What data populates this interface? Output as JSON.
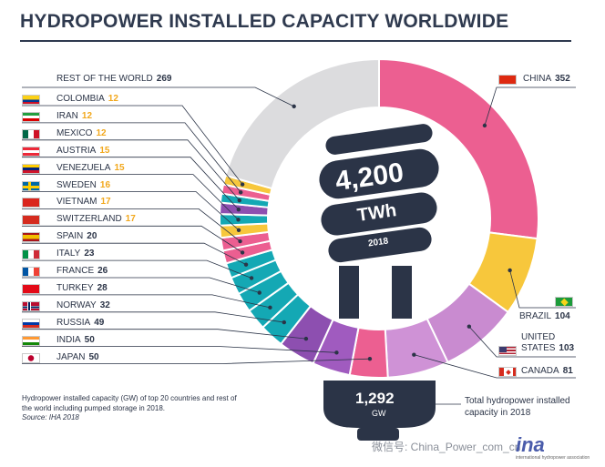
{
  "title": "HYDROPOWER INSTALLED CAPACITY WORLDWIDE",
  "chart_data": {
    "type": "donut",
    "title": "HYDROPOWER INSTALLED CAPACITY WORLDWIDE",
    "unit": "GW",
    "total_capacity": "1,292",
    "total_unit": "GW",
    "generation": "4,200",
    "generation_unit": "TWh",
    "year": "2018",
    "total_caption": "Total hydropower installed capacity in 2018",
    "note": "Hydropower installed capacity (GW) of top 20 countries and rest of the world including pumped storage in 2018.",
    "source": "Source: IHA 2018",
    "slices": [
      {
        "name": "CHINA",
        "value": 352,
        "color": "#ec5f91"
      },
      {
        "name": "BRAZIL",
        "value": 104,
        "color": "#f7c73c"
      },
      {
        "name": "UNITED STATES",
        "value": 103,
        "color": "#c98bd0"
      },
      {
        "name": "CANADA",
        "value": 81,
        "color": "#cf92d6"
      },
      {
        "name": "JAPAN",
        "value": 50,
        "color": "#ec5f91"
      },
      {
        "name": "INDIA",
        "value": 50,
        "color": "#a05bbf"
      },
      {
        "name": "RUSSIA",
        "value": 49,
        "color": "#8d4fb0"
      },
      {
        "name": "NORWAY",
        "value": 32,
        "color": "#14a8b4"
      },
      {
        "name": "TURKEY",
        "value": 28,
        "color": "#14a8b4"
      },
      {
        "name": "FRANCE",
        "value": 26,
        "color": "#14a8b4"
      },
      {
        "name": "ITALY",
        "value": 23,
        "color": "#14a8b4"
      },
      {
        "name": "SPAIN",
        "value": 20,
        "color": "#14a8b4"
      },
      {
        "name": "SWITZERLAND",
        "value": 17,
        "color": "#ec5f91"
      },
      {
        "name": "VIETNAM",
        "value": 17,
        "color": "#ec5f91"
      },
      {
        "name": "SWEDEN",
        "value": 16,
        "color": "#f7c73c"
      },
      {
        "name": "VENEZUELA",
        "value": 15,
        "color": "#14a8b4"
      },
      {
        "name": "AUSTRIA",
        "value": 15,
        "color": "#8d4fb0"
      },
      {
        "name": "MEXICO",
        "value": 12,
        "color": "#14a8b4"
      },
      {
        "name": "IRAN",
        "value": 12,
        "color": "#ec5f91"
      },
      {
        "name": "COLOMBIA",
        "value": 12,
        "color": "#f7c73c"
      },
      {
        "name": "REST OF THE WORLD",
        "value": 269,
        "color": "#dcdcde"
      }
    ]
  },
  "labels": {
    "china": {
      "name": "CHINA",
      "value": "352",
      "flag": "cn"
    },
    "brazil": {
      "name": "BRAZIL",
      "value": "104",
      "flag": "br"
    },
    "us_line1": "UNITED",
    "us_line2": "STATES",
    "us_value": "103",
    "canada": {
      "name": "CANADA",
      "value": "81",
      "flag": "ca"
    },
    "rest": {
      "name": "REST OF THE WORLD",
      "value": "269"
    },
    "left": [
      {
        "name": "COLOMBIA",
        "value": "12",
        "flag": "co"
      },
      {
        "name": "IRAN",
        "value": "12",
        "flag": "ir"
      },
      {
        "name": "MEXICO",
        "value": "12",
        "flag": "mx"
      },
      {
        "name": "AUSTRIA",
        "value": "15",
        "flag": "at"
      },
      {
        "name": "VENEZUELA",
        "value": "15",
        "flag": "ve"
      },
      {
        "name": "SWEDEN",
        "value": "16",
        "flag": "se"
      },
      {
        "name": "VIETNAM",
        "value": "17",
        "flag": "vn"
      },
      {
        "name": "SWITZERLAND",
        "value": "17",
        "flag": "ch"
      },
      {
        "name": "SPAIN",
        "value": "20",
        "flag": "es"
      },
      {
        "name": "ITALY",
        "value": "23",
        "flag": "it"
      },
      {
        "name": "FRANCE",
        "value": "26",
        "flag": "fr"
      },
      {
        "name": "TURKEY",
        "value": "28",
        "flag": "tr"
      },
      {
        "name": "NORWAY",
        "value": "32",
        "flag": "no"
      },
      {
        "name": "RUSSIA",
        "value": "49",
        "flag": "ru"
      },
      {
        "name": "INDIA",
        "value": "50",
        "flag": "in"
      },
      {
        "name": "JAPAN",
        "value": "50",
        "flag": "jp"
      }
    ]
  },
  "watermark": "微信号: China_Power_com_cn",
  "logo": "ina",
  "logo_sub": "international hydropower association",
  "colors": {
    "value_accent": "#f2a81d",
    "title": "#2f3a4f",
    "bulb": "#2b3447"
  }
}
